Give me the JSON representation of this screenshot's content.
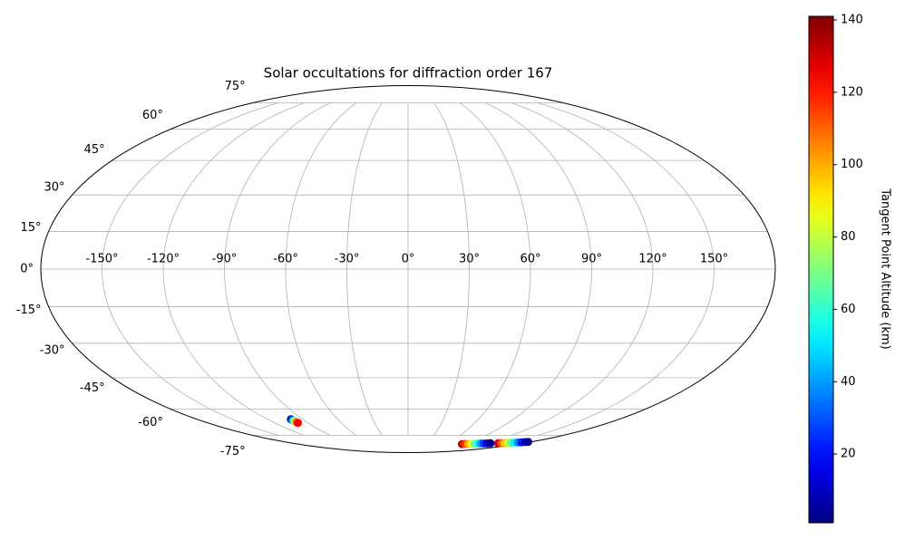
{
  "chart_data": {
    "type": "scatter",
    "projection": "mollweide",
    "title": "Solar occultations for diffraction order 167",
    "colorbar_label": "Tangent Point Altitude (km)",
    "colormap": "jet",
    "grid": true,
    "xticks": [
      {
        "value": -150,
        "label": "-150°"
      },
      {
        "value": -120,
        "label": "-120°"
      },
      {
        "value": -90,
        "label": "-90°"
      },
      {
        "value": -60,
        "label": "-60°"
      },
      {
        "value": -30,
        "label": "-30°"
      },
      {
        "value": 0,
        "label": "0°"
      },
      {
        "value": 30,
        "label": "30°"
      },
      {
        "value": 60,
        "label": "60°"
      },
      {
        "value": 90,
        "label": "90°"
      },
      {
        "value": 120,
        "label": "120°"
      },
      {
        "value": 150,
        "label": "150°"
      }
    ],
    "yticks": [
      {
        "value": -75,
        "label": "-75°"
      },
      {
        "value": -60,
        "label": "-60°"
      },
      {
        "value": -45,
        "label": "-45°"
      },
      {
        "value": -30,
        "label": "-30°"
      },
      {
        "value": -15,
        "label": "-15°"
      },
      {
        "value": 0,
        "label": "0°"
      },
      {
        "value": 15,
        "label": "15°"
      },
      {
        "value": 30,
        "label": "30°"
      },
      {
        "value": 45,
        "label": "45°"
      },
      {
        "value": 60,
        "label": "60°"
      },
      {
        "value": 75,
        "label": "75°"
      }
    ],
    "clim": [
      1,
      141
    ],
    "cticks": [
      20,
      40,
      60,
      80,
      100,
      120,
      140
    ],
    "series": [
      {
        "x": [
          -100,
          -99.8,
          -99.6,
          -99.4,
          -99.2,
          -99,
          88,
          92.5,
          97,
          101.5,
          106,
          110.5,
          115,
          119.5,
          124,
          128,
          140,
          144,
          148,
          152,
          156,
          160,
          164,
          168,
          172,
          175
        ],
        "y": [
          -65.5,
          -65.9,
          -66.3,
          -66.7,
          -67.1,
          -67.5,
          -81.2,
          -81.1,
          -81.0,
          -80.95,
          -80.9,
          -80.8,
          -80.75,
          -80.7,
          -80.6,
          -80.5,
          -80.5,
          -80.4,
          -80.3,
          -80.2,
          -80.1,
          -80.0,
          -79.9,
          -79.8,
          -79.65,
          -79.5
        ],
        "values": [
          5,
          30,
          60,
          90,
          110,
          125,
          130,
          115,
          100,
          85,
          70,
          55,
          40,
          25,
          12,
          3,
          128,
          112,
          97,
          82,
          67,
          52,
          37,
          22,
          10,
          2
        ]
      }
    ]
  }
}
